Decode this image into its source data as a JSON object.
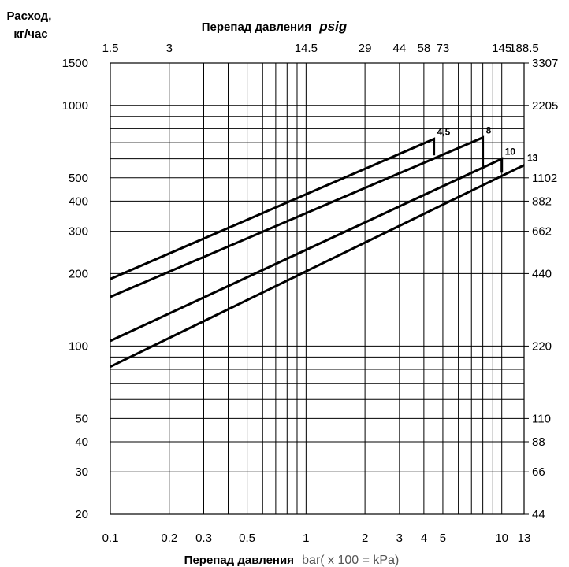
{
  "chart_data": {
    "type": "line",
    "title": "",
    "ylabel": "Расход, кг/час",
    "top_axis_label": "Перепад давления",
    "top_axis_unit": "psig",
    "xlabel_bold": "Перепад давления",
    "xlabel_unit": "bar( x 100 = kPa)",
    "x_scale": "log",
    "y_scale": "log",
    "xlim": [
      0.1,
      13
    ],
    "ylim": [
      20,
      1500
    ],
    "x_ticks": [
      0.1,
      0.2,
      0.3,
      0.5,
      1,
      2,
      3,
      4,
      5,
      10,
      13
    ],
    "x_tick_labels": [
      "0.1",
      "0.2",
      "0.3",
      "0.5",
      "1",
      "2",
      "3",
      "4",
      "5",
      "10",
      "13"
    ],
    "top_ticks": [
      0.1,
      0.2,
      1,
      2,
      3,
      4,
      5,
      10,
      13
    ],
    "top_tick_labels": [
      "1.5",
      "3",
      "14.5",
      "29",
      "44",
      "58",
      "73",
      "145",
      "188.5"
    ],
    "y_ticks": [
      20,
      30,
      40,
      50,
      100,
      200,
      300,
      400,
      500,
      1000,
      1500
    ],
    "y_tick_labels": [
      "20",
      "30",
      "40",
      "50",
      "100",
      "200",
      "300",
      "400",
      "500",
      "1000",
      "1500"
    ],
    "right_ticks": [
      20,
      30,
      40,
      50,
      100,
      200,
      300,
      400,
      500,
      1000,
      1500
    ],
    "right_tick_labels": [
      "44",
      "66",
      "88",
      "110",
      "220",
      "440",
      "662",
      "882",
      "1102",
      "2205",
      "3307"
    ],
    "grid": true,
    "series": [
      {
        "name": "4,5",
        "x": [
          0.1,
          4.5
        ],
        "y": [
          190,
          725
        ],
        "end_drop": 620
      },
      {
        "name": "8",
        "x": [
          0.1,
          8
        ],
        "y": [
          160,
          735
        ],
        "end_drop": 545
      },
      {
        "name": "10",
        "x": [
          0.1,
          10
        ],
        "y": [
          105,
          600
        ],
        "end_drop": 525
      },
      {
        "name": "13",
        "x": [
          0.1,
          13
        ],
        "y": [
          82,
          565
        ],
        "end_drop": null
      }
    ]
  }
}
